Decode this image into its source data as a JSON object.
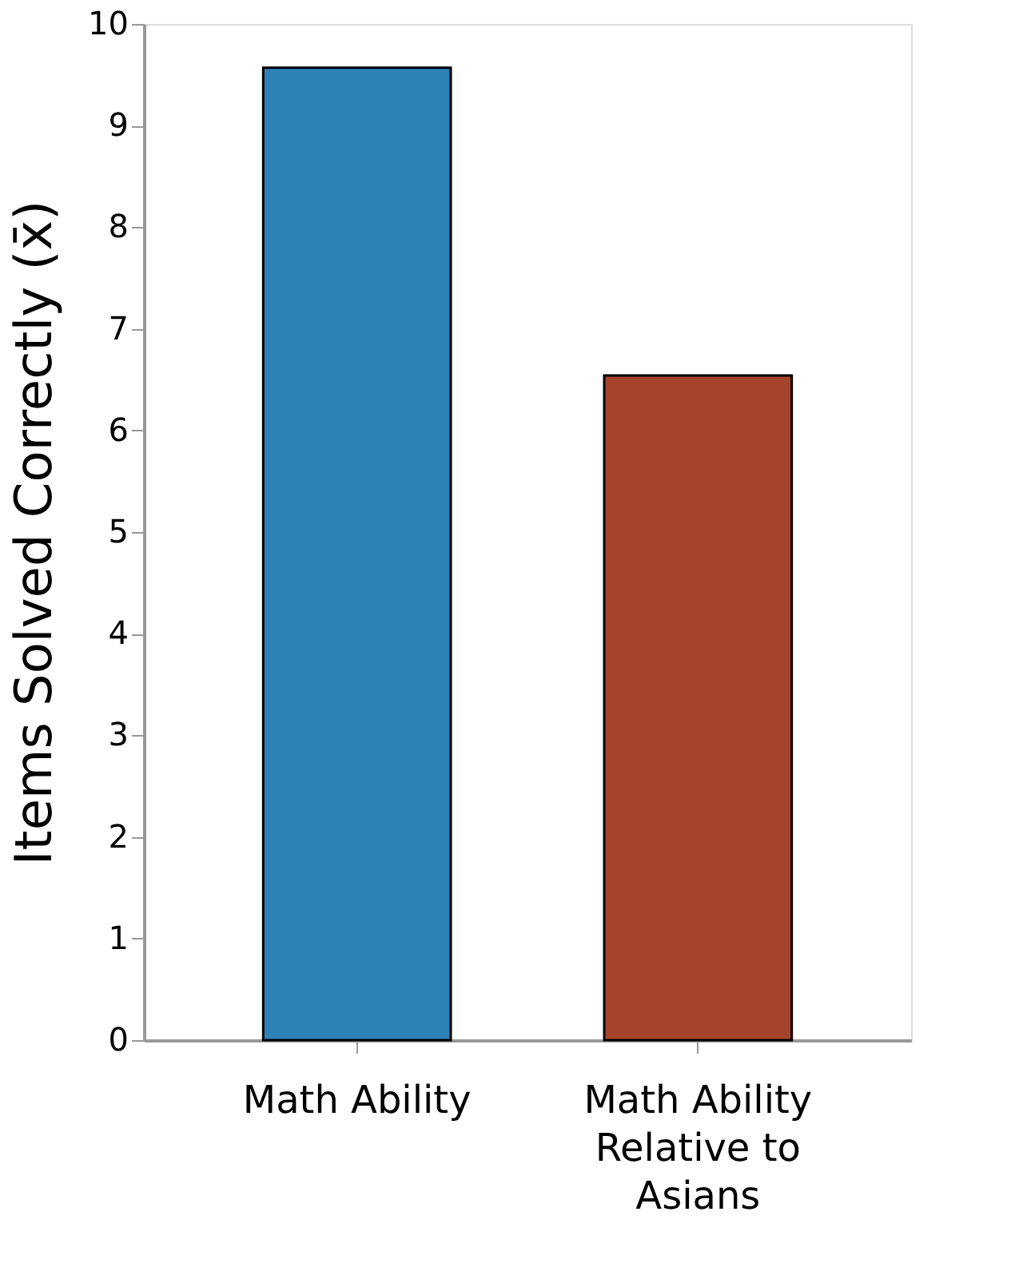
{
  "chart_data": {
    "type": "bar",
    "ylabel": "Items Solved Correctly (x̄)",
    "categories": [
      "Math Ability",
      "Math Ability Relative to Asians"
    ],
    "values": [
      9.57,
      6.54
    ],
    "colors": [
      "#2e81b7",
      "#a5432d"
    ],
    "ylim": [
      0,
      10
    ],
    "yticks": [
      0,
      1,
      2,
      3,
      4,
      5,
      6,
      7,
      8,
      9,
      10
    ],
    "grid": false,
    "legend": false
  }
}
